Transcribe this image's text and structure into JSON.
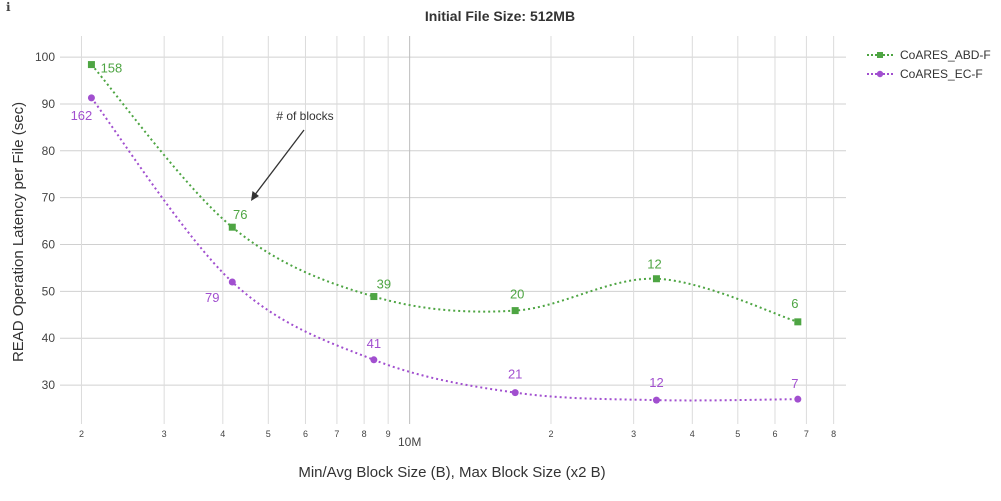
{
  "info_icon": "ℹ",
  "chart_data": {
    "type": "line",
    "title": "Initial File Size: 512MB",
    "xlabel": "Min/Avg Block Size (B), Max Block Size (x2 B)",
    "ylabel": "READ Operation Latency per File (sec)",
    "x_scale": "log",
    "xlim_bytes": [
      1800000,
      85000000
    ],
    "ylim": [
      21.7,
      104.5
    ],
    "y_ticks": [
      30,
      40,
      50,
      60,
      70,
      80,
      90,
      100
    ],
    "x_ticks": [
      {
        "value": 2000000,
        "label": "2"
      },
      {
        "value": 3000000,
        "label": "3"
      },
      {
        "value": 4000000,
        "label": "4"
      },
      {
        "value": 5000000,
        "label": "5"
      },
      {
        "value": 6000000,
        "label": "6"
      },
      {
        "value": 7000000,
        "label": "7"
      },
      {
        "value": 8000000,
        "label": "8"
      },
      {
        "value": 9000000,
        "label": "9"
      },
      {
        "value": 10000000,
        "label": "10M"
      },
      {
        "value": 20000000,
        "label": "2"
      },
      {
        "value": 30000000,
        "label": "3"
      },
      {
        "value": 40000000,
        "label": "4"
      },
      {
        "value": 50000000,
        "label": "5"
      },
      {
        "value": 60000000,
        "label": "6"
      },
      {
        "value": 70000000,
        "label": "7"
      },
      {
        "value": 80000000,
        "label": "8"
      }
    ],
    "grid": true,
    "legend_position": "top-right",
    "annotation": {
      "text": "# of blocks"
    },
    "series": [
      {
        "name": "CoARES_ABD-F",
        "color": "#4ea543",
        "marker": "square",
        "x": [
          2100000,
          4190000,
          8390000,
          16780000,
          33550000,
          67110000
        ],
        "y": [
          98.4,
          63.7,
          48.9,
          45.9,
          52.7,
          43.5
        ],
        "labels": [
          "158",
          "76",
          "39",
          "20",
          "12",
          "6"
        ]
      },
      {
        "name": "CoARES_EC-F",
        "color": "#a14fcf",
        "marker": "circle",
        "x": [
          2100000,
          4190000,
          8390000,
          16780000,
          33550000,
          67110000
        ],
        "y": [
          91.3,
          52.0,
          35.4,
          28.4,
          26.8,
          27.0
        ],
        "labels": [
          "162",
          "79",
          "41",
          "21",
          "12",
          "7"
        ]
      }
    ]
  }
}
